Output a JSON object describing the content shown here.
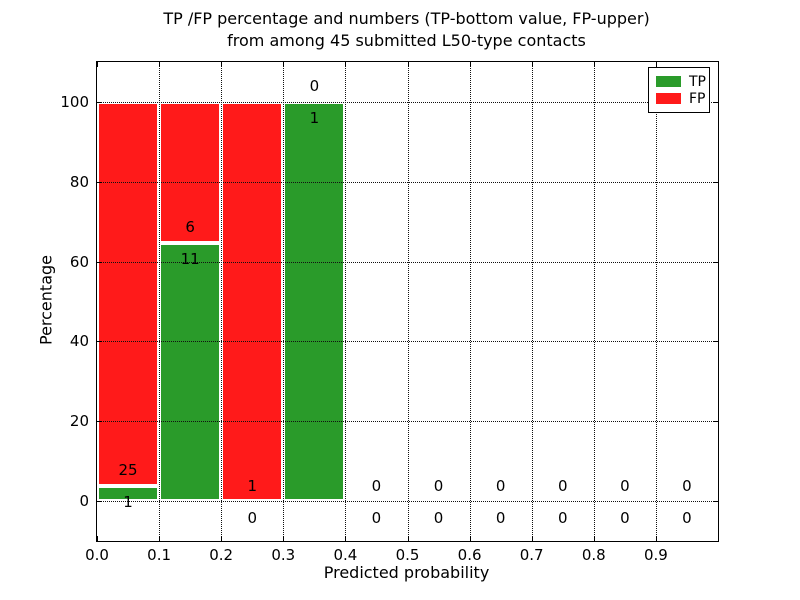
{
  "title": {
    "line1": "TP /FP percentage and numbers (TP-bottom value, FP-upper)",
    "line2": "from among 45 submitted L50-type contacts"
  },
  "legend": {
    "items": [
      {
        "label": "TP",
        "color": "#2a9b2a"
      },
      {
        "label": "FP",
        "color": "#ff1a1a"
      }
    ]
  },
  "chart_data": {
    "type": "bar",
    "variant": "stacked-percentage-histogram",
    "title": "TP /FP percentage and numbers (TP-bottom value, FP-upper) from among 45 submitted L50-type contacts",
    "xlabel": "Predicted probability",
    "ylabel": "Percentage",
    "xlim": [
      0,
      1
    ],
    "ylim": [
      -10,
      110
    ],
    "grid": "dotted",
    "legend_position": "upper-right",
    "total_contacts": 45,
    "xticks": [
      "0.0",
      "0.1",
      "0.2",
      "0.3",
      "0.4",
      "0.5",
      "0.6",
      "0.7",
      "0.8",
      "0.9"
    ],
    "xtick_values": [
      0.0,
      0.1,
      0.2,
      0.3,
      0.4,
      0.5,
      0.6,
      0.7,
      0.8,
      0.9
    ],
    "yticks": [
      "0",
      "20",
      "40",
      "60",
      "80",
      "100"
    ],
    "ytick_values": [
      0,
      20,
      40,
      60,
      80,
      100
    ],
    "series": [
      {
        "name": "TP",
        "color": "#2a9b2a"
      },
      {
        "name": "FP",
        "color": "#ff1a1a"
      }
    ],
    "bins": [
      {
        "x0": 0.0,
        "x1": 0.1,
        "tp_count": 1,
        "fp_count": 25,
        "tp_pct": 3.85,
        "fp_pct": 96.15
      },
      {
        "x0": 0.1,
        "x1": 0.2,
        "tp_count": 11,
        "fp_count": 6,
        "tp_pct": 64.71,
        "fp_pct": 35.29
      },
      {
        "x0": 0.2,
        "x1": 0.3,
        "tp_count": 0,
        "fp_count": 1,
        "tp_pct": 0,
        "fp_pct": 100
      },
      {
        "x0": 0.3,
        "x1": 0.4,
        "tp_count": 1,
        "fp_count": 0,
        "tp_pct": 100,
        "fp_pct": 0
      },
      {
        "x0": 0.4,
        "x1": 0.5,
        "tp_count": 0,
        "fp_count": 0,
        "tp_pct": 0,
        "fp_pct": 0
      },
      {
        "x0": 0.5,
        "x1": 0.6,
        "tp_count": 0,
        "fp_count": 0,
        "tp_pct": 0,
        "fp_pct": 0
      },
      {
        "x0": 0.6,
        "x1": 0.7,
        "tp_count": 0,
        "fp_count": 0,
        "tp_pct": 0,
        "fp_pct": 0
      },
      {
        "x0": 0.7,
        "x1": 0.8,
        "tp_count": 0,
        "fp_count": 0,
        "tp_pct": 0,
        "fp_pct": 0
      },
      {
        "x0": 0.8,
        "x1": 0.9,
        "tp_count": 0,
        "fp_count": 0,
        "tp_pct": 0,
        "fp_pct": 0
      },
      {
        "x0": 0.9,
        "x1": 1.0,
        "tp_count": 0,
        "fp_count": 0,
        "tp_pct": 0,
        "fp_pct": 0
      }
    ]
  }
}
